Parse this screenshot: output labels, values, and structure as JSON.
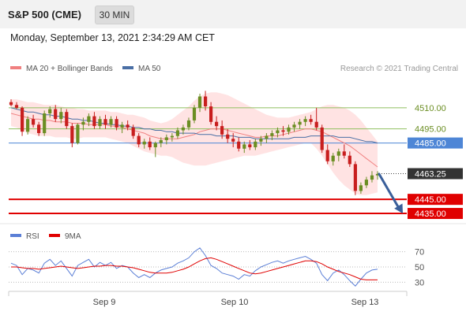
{
  "header": {
    "title": "S&P 500 (CME)",
    "timeframe": "30 MIN",
    "datetime": "Monday, September 13, 2021 2:34:29 AM CET"
  },
  "legend": {
    "bollinger_label": "MA 20 + Bollinger Bands",
    "ma50_label": "MA 50",
    "copyright": "Research © 2021 Trading Central",
    "rsi_label": "RSI",
    "rsi_ma_label": "9MA"
  },
  "colors": {
    "up": "#6b8e23",
    "down": "#c81e1e",
    "band": "#ffcccc",
    "ma20": "#f08080",
    "ma50": "#4a6fa5",
    "pivot": "#4e86d6",
    "support": "#e00000",
    "resistance": "#8fbf5f",
    "arrow": "#3a5f9a",
    "rsi": "#5b7fd6",
    "rsi_ma": "#e00000"
  },
  "chart_data": [
    {
      "type": "candlestick",
      "x_labels": [
        "Sep 9",
        "Sep 10",
        "Sep 13"
      ],
      "ylim": [
        4430,
        4525
      ],
      "candles": [
        [
          4514,
          4516,
          4511,
          4512
        ],
        [
          4512,
          4514,
          4509,
          4510
        ],
        [
          4510,
          4511,
          4490,
          4493
        ],
        [
          4493,
          4504,
          4491,
          4502
        ],
        [
          4502,
          4505,
          4496,
          4498
        ],
        [
          4498,
          4500,
          4490,
          4492
        ],
        [
          4492,
          4508,
          4490,
          4506
        ],
        [
          4506,
          4511,
          4503,
          4509
        ],
        [
          4509,
          4512,
          4500,
          4502
        ],
        [
          4502,
          4510,
          4499,
          4507
        ],
        [
          4507,
          4509,
          4495,
          4497
        ],
        [
          4497,
          4499,
          4482,
          4485
        ],
        [
          4485,
          4499,
          4484,
          4498
        ],
        [
          4498,
          4503,
          4494,
          4500
        ],
        [
          4500,
          4506,
          4497,
          4504
        ],
        [
          4504,
          4507,
          4495,
          4497
        ],
        [
          4497,
          4504,
          4495,
          4502
        ],
        [
          4502,
          4505,
          4495,
          4498
        ],
        [
          4498,
          4504,
          4496,
          4502
        ],
        [
          4502,
          4504,
          4494,
          4496
        ],
        [
          4496,
          4500,
          4492,
          4498
        ],
        [
          4498,
          4501,
          4494,
          4496
        ],
        [
          4496,
          4498,
          4488,
          4490
        ],
        [
          4490,
          4492,
          4482,
          4484
        ],
        [
          4484,
          4488,
          4481,
          4486
        ],
        [
          4486,
          4489,
          4480,
          4482
        ],
        [
          4482,
          4486,
          4475,
          4485
        ],
        [
          4485,
          4489,
          4482,
          4487
        ],
        [
          4487,
          4491,
          4484,
          4489
        ],
        [
          4489,
          4492,
          4486,
          4490
        ],
        [
          4490,
          4496,
          4488,
          4494
        ],
        [
          4494,
          4498,
          4491,
          4496
        ],
        [
          4496,
          4503,
          4494,
          4501
        ],
        [
          4501,
          4512,
          4499,
          4510
        ],
        [
          4510,
          4520,
          4507,
          4518
        ],
        [
          4518,
          4522,
          4508,
          4511
        ],
        [
          4511,
          4514,
          4498,
          4500
        ],
        [
          4500,
          4504,
          4494,
          4497
        ],
        [
          4497,
          4501,
          4488,
          4491
        ],
        [
          4491,
          4495,
          4485,
          4488
        ],
        [
          4488,
          4492,
          4482,
          4486
        ],
        [
          4486,
          4489,
          4479,
          4481
        ],
        [
          4481,
          4486,
          4478,
          4484
        ],
        [
          4484,
          4487,
          4480,
          4482
        ],
        [
          4482,
          4488,
          4480,
          4486
        ],
        [
          4486,
          4490,
          4483,
          4488
        ],
        [
          4488,
          4492,
          4485,
          4490
        ],
        [
          4490,
          4494,
          4487,
          4492
        ],
        [
          4492,
          4496,
          4489,
          4494
        ],
        [
          4494,
          4497,
          4490,
          4493
        ],
        [
          4493,
          4498,
          4491,
          4496
        ],
        [
          4496,
          4500,
          4493,
          4498
        ],
        [
          4498,
          4502,
          4495,
          4500
        ],
        [
          4500,
          4504,
          4497,
          4502
        ],
        [
          4502,
          4505,
          4498,
          4500
        ],
        [
          4500,
          4510,
          4494,
          4496
        ],
        [
          4496,
          4498,
          4478,
          4480
        ],
        [
          4480,
          4484,
          4470,
          4472
        ],
        [
          4472,
          4478,
          4469,
          4476
        ],
        [
          4476,
          4481,
          4472,
          4479
        ],
        [
          4479,
          4484,
          4474,
          4476
        ],
        [
          4476,
          4479,
          4468,
          4470
        ],
        [
          4470,
          4472,
          4448,
          4451
        ],
        [
          4451,
          4457,
          4449,
          4455
        ],
        [
          4455,
          4461,
          4453,
          4459
        ],
        [
          4459,
          4465,
          4457,
          4462
        ],
        [
          4462,
          4465,
          4459,
          4463
        ]
      ],
      "ma20": [
        4506,
        4505,
        4504,
        4503,
        4502,
        4502,
        4501,
        4501,
        4500,
        4500,
        4500,
        4499,
        4499,
        4499,
        4498,
        4498,
        4498,
        4498,
        4497,
        4497,
        4496,
        4495,
        4494,
        4493,
        4492,
        4490,
        4489,
        4488,
        4488,
        4488,
        4488,
        4489,
        4490,
        4491,
        4493,
        4494,
        4495,
        4495,
        4495,
        4494,
        4493,
        4492,
        4491,
        4490,
        4489,
        4489,
        4490,
        4490,
        4490,
        4491,
        4492,
        4493,
        4494,
        4495,
        4495,
        4494,
        4493,
        4491,
        4489,
        4487,
        4485,
        4483,
        4480,
        4477,
        4474,
        4471,
        4468
      ],
      "ma50": [
        4510,
        4509,
        4508,
        4507,
        4507,
        4506,
        4505,
        4505,
        4504,
        4504,
        4503,
        4502,
        4502,
        4501,
        4501,
        4500,
        4499,
        4499,
        4498,
        4498,
        4497,
        4497,
        4496,
        4496,
        4495,
        4495,
        4494,
        4494,
        4493,
        4493,
        4492,
        4492,
        4492,
        4492,
        4491,
        4491,
        4491,
        4490,
        4490,
        4490,
        4490,
        4489,
        4489,
        4489,
        4488,
        4488,
        4488,
        4488,
        4488,
        4488,
        4488,
        4489,
        4489,
        4489,
        4490,
        4490,
        4490,
        4490,
        4490,
        4489,
        4489,
        4489,
        4488,
        4487,
        4486,
        4486,
        4485
      ],
      "band_upper": [
        4516,
        4516,
        4515,
        4514,
        4514,
        4513,
        4512,
        4512,
        4512,
        4511,
        4510,
        4510,
        4509,
        4509,
        4508,
        4508,
        4508,
        4508,
        4507,
        4507,
        4506,
        4505,
        4505,
        4504,
        4503,
        4501,
        4500,
        4499,
        4500,
        4502,
        4505,
        4508,
        4511,
        4515,
        4518,
        4520,
        4521,
        4521,
        4520,
        4519,
        4517,
        4515,
        4513,
        4511,
        4509,
        4507,
        4505,
        4504,
        4503,
        4503,
        4503,
        4504,
        4505,
        4506,
        4507,
        4509,
        4511,
        4512,
        4512,
        4511,
        4510,
        4508,
        4505,
        4501,
        4496,
        4491,
        4486
      ],
      "band_lower": [
        4497,
        4496,
        4494,
        4492,
        4491,
        4490,
        4490,
        4490,
        4489,
        4489,
        4489,
        4488,
        4488,
        4489,
        4489,
        4489,
        4489,
        4489,
        4488,
        4487,
        4486,
        4485,
        4483,
        4481,
        4479,
        4478,
        4477,
        4476,
        4476,
        4475,
        4473,
        4471,
        4470,
        4469,
        4469,
        4469,
        4470,
        4471,
        4472,
        4473,
        4474,
        4475,
        4476,
        4476,
        4476,
        4477,
        4478,
        4479,
        4480,
        4481,
        4482,
        4483,
        4484,
        4485,
        4485,
        4481,
        4476,
        4470,
        4464,
        4459,
        4455,
        4452,
        4449,
        4448,
        4448,
        4449,
        4450
      ],
      "levels": [
        {
          "label": "4510.00",
          "value": 4510,
          "kind": "resistance"
        },
        {
          "label": "4495.00",
          "value": 4495,
          "kind": "resistance"
        },
        {
          "label": "4485.00",
          "value": 4485,
          "kind": "pivot"
        },
        {
          "label": "4463.25",
          "value": 4463.25,
          "kind": "last"
        },
        {
          "label": "4445.00",
          "value": 4445,
          "kind": "support"
        },
        {
          "label": "4435.00",
          "value": 4435,
          "kind": "support"
        }
      ],
      "forecast": {
        "from": 4463,
        "to": 4435
      }
    },
    {
      "type": "line",
      "name": "RSI",
      "ylim": [
        20,
        80
      ],
      "tick_labels": [
        "70",
        "50",
        "30"
      ],
      "rsi": [
        55,
        52,
        40,
        48,
        46,
        42,
        55,
        60,
        52,
        58,
        48,
        38,
        52,
        56,
        60,
        50,
        56,
        52,
        56,
        48,
        52,
        50,
        42,
        36,
        40,
        36,
        42,
        46,
        48,
        50,
        55,
        58,
        62,
        70,
        75,
        65,
        52,
        48,
        42,
        40,
        38,
        34,
        40,
        38,
        45,
        50,
        53,
        56,
        58,
        55,
        58,
        60,
        62,
        64,
        60,
        55,
        40,
        32,
        42,
        46,
        40,
        32,
        25,
        34,
        42,
        46,
        47
      ],
      "rsi_ma": [
        50,
        50,
        49,
        48,
        48,
        47,
        48,
        49,
        50,
        51,
        50,
        49,
        48,
        49,
        50,
        51,
        51,
        52,
        52,
        51,
        51,
        50,
        49,
        47,
        45,
        43,
        42,
        42,
        42,
        43,
        45,
        47,
        50,
        54,
        58,
        61,
        62,
        60,
        57,
        54,
        51,
        48,
        45,
        42,
        41,
        42,
        44,
        46,
        48,
        50,
        52,
        54,
        56,
        58,
        58,
        57,
        54,
        50,
        47,
        44,
        42,
        40,
        37,
        34,
        33,
        33,
        33
      ]
    }
  ]
}
